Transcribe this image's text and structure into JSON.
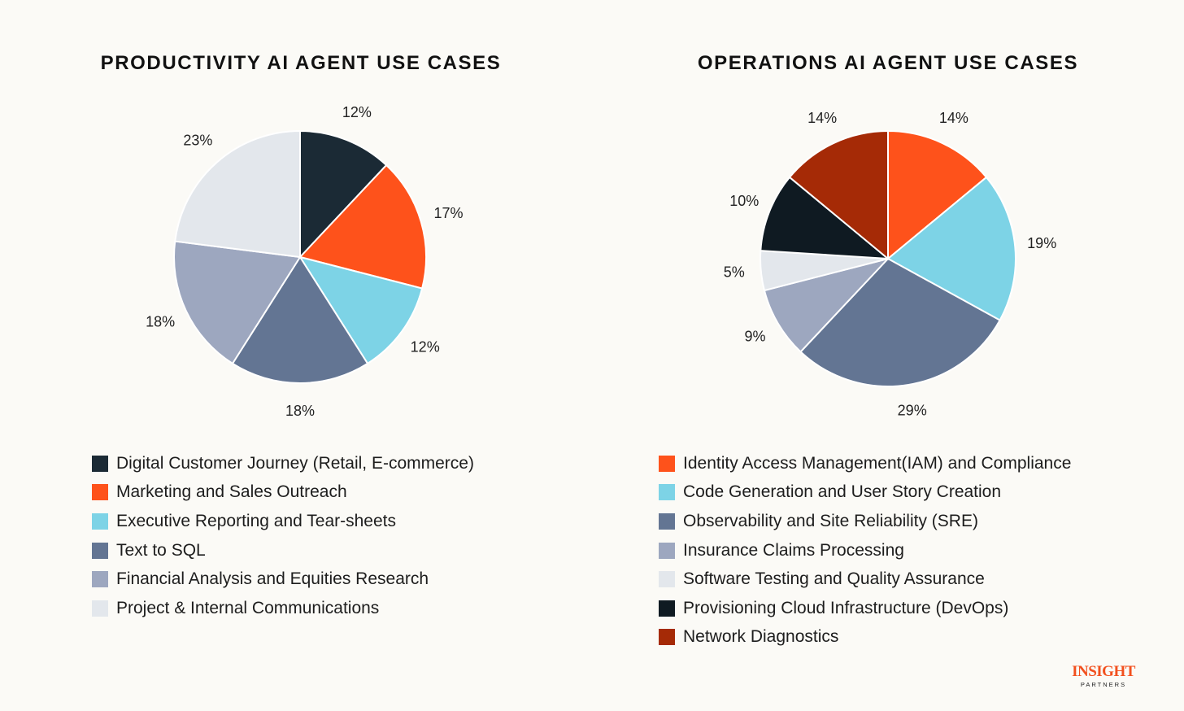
{
  "chart_data": [
    {
      "type": "pie",
      "title": "PRODUCTIVITY AI AGENT USE CASES",
      "categories": [
        "Digital Customer Journey (Retail, E-commerce)",
        "Marketing and Sales Outreach",
        "Executive Reporting and Tear-sheets",
        "Text to SQL",
        "Financial Analysis and Equities Research",
        "Project & Internal Communications"
      ],
      "values": [
        12,
        17,
        12,
        18,
        18,
        23
      ],
      "labels": [
        "12%",
        "17%",
        "12%",
        "18%",
        "18%",
        "23%"
      ],
      "colors": [
        "#1b2a35",
        "#fe521b",
        "#7dd3e6",
        "#637593",
        "#9da7bf",
        "#e3e7ec"
      ],
      "legend_position": "bottom"
    },
    {
      "type": "pie",
      "title": "OPERATIONS AI AGENT USE CASES",
      "categories": [
        "Identity Access Management(IAM) and Compliance",
        "Code Generation and User Story Creation",
        "Observability and Site Reliability (SRE)",
        "Insurance Claims Processing",
        "Software Testing and Quality Assurance",
        "Provisioning Cloud Infrastructure (DevOps)",
        "Network Diagnostics"
      ],
      "values": [
        14,
        19,
        29,
        9,
        5,
        10,
        14
      ],
      "labels": [
        "14%",
        "19%",
        "29%",
        "9%",
        "5%",
        "10%",
        "14%"
      ],
      "colors": [
        "#fe521b",
        "#7dd3e6",
        "#637593",
        "#9da7bf",
        "#e3e7ec",
        "#0f1a22",
        "#a52a06"
      ],
      "legend_position": "bottom"
    }
  ],
  "logo": {
    "main": "INSIGHT",
    "sub": "PARTNERS",
    "color": "#f2501e"
  }
}
